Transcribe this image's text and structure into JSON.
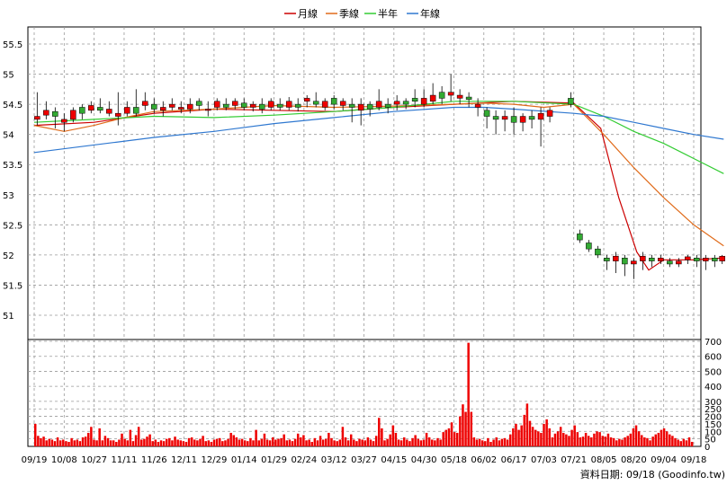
{
  "legend": {
    "items": [
      {
        "label": "月線",
        "color": "#cc0000"
      },
      {
        "label": "季線",
        "color": "#e06b1a"
      },
      {
        "label": "半年",
        "color": "#33cc33"
      },
      {
        "label": "年線",
        "color": "#2f78d0"
      }
    ]
  },
  "footer": {
    "text": "資料日期: 09/18 (Goodinfo.tw)"
  },
  "chart_data": [
    {
      "type": "candlestick",
      "title": "",
      "xlabel": "",
      "ylabel": "",
      "ylim": [
        50.65,
        55.85
      ],
      "y_ticks": [
        51,
        51.5,
        52,
        52.5,
        53,
        53.5,
        54,
        54.5,
        55,
        55.5
      ],
      "x_ticks": [
        "09/19",
        "10/08",
        "10/27",
        "11/11",
        "11/26",
        "12/11",
        "12/29",
        "01/14",
        "01/29",
        "02/24",
        "03/12",
        "03/27",
        "04/15",
        "04/30",
        "05/18",
        "06/02",
        "06/17",
        "07/03",
        "07/21",
        "08/05",
        "08/20",
        "09/04",
        "09/18"
      ],
      "grid": true,
      "candle_colors": {
        "up": "#ee0000",
        "down": "#33aa33"
      },
      "moving_averages": [
        {
          "name": "月線",
          "color": "#cc0000",
          "points": [
            [
              0,
              54.15
            ],
            [
              2,
              54.2
            ],
            [
              4,
              54.35
            ],
            [
              6,
              54.42
            ],
            [
              8,
              54.4
            ],
            [
              10,
              54.38
            ],
            [
              12,
              54.45
            ],
            [
              14,
              54.5
            ],
            [
              16,
              54.55
            ],
            [
              18,
              54.52
            ],
            [
              18.9,
              54.1
            ],
            [
              19.5,
              52.95
            ],
            [
              20.1,
              52.05
            ],
            [
              20.5,
              51.75
            ],
            [
              21,
              51.92
            ],
            [
              22,
              51.92
            ],
            [
              23,
              51.95
            ]
          ]
        },
        {
          "name": "季線",
          "color": "#e06b1a",
          "points": [
            [
              0,
              54.15
            ],
            [
              1,
              54.05
            ],
            [
              2,
              54.15
            ],
            [
              3,
              54.28
            ],
            [
              4,
              54.38
            ],
            [
              6,
              54.42
            ],
            [
              8,
              54.48
            ],
            [
              10,
              54.45
            ],
            [
              12,
              54.47
            ],
            [
              14,
              54.5
            ],
            [
              15,
              54.52
            ],
            [
              16,
              54.5
            ],
            [
              17,
              54.45
            ],
            [
              18,
              54.5
            ],
            [
              19,
              54.0
            ],
            [
              20,
              53.45
            ],
            [
              21,
              52.95
            ],
            [
              22,
              52.5
            ],
            [
              23,
              52.15
            ]
          ]
        },
        {
          "name": "半年",
          "color": "#33cc33",
          "points": [
            [
              0,
              54.2
            ],
            [
              2,
              54.25
            ],
            [
              4,
              54.3
            ],
            [
              6,
              54.28
            ],
            [
              8,
              54.32
            ],
            [
              10,
              54.38
            ],
            [
              12,
              54.45
            ],
            [
              14,
              54.55
            ],
            [
              16,
              54.55
            ],
            [
              18,
              54.5
            ],
            [
              19,
              54.3
            ],
            [
              20,
              54.05
            ],
            [
              21,
              53.85
            ],
            [
              22,
              53.6
            ],
            [
              23,
              53.35
            ]
          ]
        },
        {
          "name": "年線",
          "color": "#2f78d0",
          "points": [
            [
              0,
              53.7
            ],
            [
              4,
              53.95
            ],
            [
              6,
              54.05
            ],
            [
              8,
              54.18
            ],
            [
              10,
              54.28
            ],
            [
              12,
              54.38
            ],
            [
              14,
              54.45
            ],
            [
              15,
              54.45
            ],
            [
              16,
              54.42
            ],
            [
              18,
              54.35
            ],
            [
              19,
              54.3
            ],
            [
              20,
              54.2
            ],
            [
              21,
              54.1
            ],
            [
              22,
              54.0
            ],
            [
              23,
              53.92
            ]
          ]
        }
      ],
      "candles": [
        [
          0.1,
          54.25,
          54.3,
          54.7,
          54.15
        ],
        [
          0.4,
          54.32,
          54.4,
          54.55,
          54.25
        ],
        [
          0.7,
          54.38,
          54.3,
          54.45,
          54.1
        ],
        [
          1.0,
          54.2,
          54.25,
          54.35,
          54.05
        ],
        [
          1.3,
          54.25,
          54.4,
          54.45,
          54.2
        ],
        [
          1.6,
          54.45,
          54.35,
          54.5,
          54.25
        ],
        [
          1.9,
          54.4,
          54.48,
          54.55,
          54.35
        ],
        [
          2.2,
          54.45,
          54.4,
          54.6,
          54.35
        ],
        [
          2.5,
          54.35,
          54.42,
          54.55,
          54.3
        ],
        [
          2.8,
          54.3,
          54.35,
          54.7,
          54.15
        ],
        [
          3.1,
          54.35,
          54.45,
          54.55,
          54.3
        ],
        [
          3.4,
          54.45,
          54.35,
          54.75,
          54.3
        ],
        [
          3.7,
          54.48,
          54.55,
          54.7,
          54.4
        ],
        [
          4.0,
          54.5,
          54.42,
          54.6,
          54.35
        ],
        [
          4.3,
          54.4,
          54.45,
          54.55,
          54.3
        ],
        [
          4.6,
          54.45,
          54.5,
          54.6,
          54.4
        ],
        [
          4.9,
          54.42,
          54.45,
          54.55,
          54.35
        ],
        [
          5.2,
          54.42,
          54.5,
          54.6,
          54.35
        ],
        [
          5.5,
          54.55,
          54.48,
          54.6,
          54.4
        ],
        [
          5.8,
          54.4,
          54.42,
          54.55,
          54.3
        ],
        [
          6.1,
          54.45,
          54.55,
          54.6,
          54.4
        ],
        [
          6.4,
          54.5,
          54.45,
          54.6,
          54.4
        ],
        [
          6.7,
          54.48,
          54.55,
          54.6,
          54.42
        ],
        [
          7.0,
          54.52,
          54.45,
          54.6,
          54.4
        ],
        [
          7.3,
          54.45,
          54.5,
          54.55,
          54.38
        ],
        [
          7.6,
          54.5,
          54.42,
          54.6,
          54.35
        ],
        [
          7.9,
          54.45,
          54.55,
          54.6,
          54.4
        ],
        [
          8.2,
          54.5,
          54.45,
          54.6,
          54.4
        ],
        [
          8.5,
          54.45,
          54.55,
          54.62,
          54.4
        ],
        [
          8.8,
          54.5,
          54.45,
          54.6,
          54.38
        ],
        [
          9.1,
          54.55,
          54.6,
          54.65,
          54.45
        ],
        [
          9.4,
          54.55,
          54.5,
          54.7,
          54.45
        ],
        [
          9.7,
          54.45,
          54.55,
          54.6,
          54.4
        ],
        [
          10.0,
          54.6,
          54.5,
          54.65,
          54.42
        ],
        [
          10.3,
          54.48,
          54.55,
          54.6,
          54.4
        ],
        [
          10.6,
          54.5,
          54.45,
          54.6,
          54.2
        ],
        [
          10.9,
          54.4,
          54.5,
          54.6,
          54.15
        ],
        [
          11.2,
          54.5,
          54.42,
          54.55,
          54.3
        ],
        [
          11.5,
          54.45,
          54.55,
          54.75,
          54.4
        ],
        [
          11.8,
          54.5,
          54.45,
          54.6,
          54.35
        ],
        [
          12.1,
          54.5,
          54.55,
          54.65,
          54.4
        ],
        [
          12.4,
          54.55,
          54.5,
          54.6,
          54.42
        ],
        [
          12.7,
          54.6,
          54.55,
          54.75,
          54.45
        ],
        [
          13.0,
          54.5,
          54.6,
          54.75,
          54.45
        ],
        [
          13.3,
          54.55,
          54.65,
          54.85,
          54.5
        ],
        [
          13.6,
          54.7,
          54.6,
          54.8,
          54.5
        ],
        [
          13.9,
          54.65,
          54.7,
          55.0,
          54.55
        ],
        [
          14.2,
          54.6,
          54.65,
          54.75,
          54.5
        ],
        [
          14.5,
          54.62,
          54.58,
          54.7,
          54.45
        ],
        [
          14.8,
          54.45,
          54.5,
          54.6,
          54.3
        ],
        [
          15.1,
          54.4,
          54.3,
          54.45,
          54.1
        ],
        [
          15.4,
          54.3,
          54.25,
          54.4,
          54.0
        ],
        [
          15.7,
          54.25,
          54.3,
          54.4,
          54.05
        ],
        [
          16.0,
          54.3,
          54.2,
          54.45,
          54.0
        ],
        [
          16.3,
          54.2,
          54.3,
          54.35,
          54.05
        ],
        [
          16.6,
          54.3,
          54.25,
          54.4,
          54.1
        ],
        [
          16.9,
          54.25,
          54.35,
          54.45,
          53.8
        ],
        [
          17.2,
          54.3,
          54.4,
          54.45,
          54.2
        ],
        [
          17.9,
          54.6,
          54.5,
          54.7,
          54.45
        ],
        [
          18.2,
          52.35,
          52.25,
          52.42,
          52.2
        ],
        [
          18.5,
          52.2,
          52.1,
          52.25,
          52.05
        ],
        [
          18.8,
          52.1,
          52.0,
          52.15,
          51.95
        ],
        [
          19.1,
          51.95,
          51.9,
          52.0,
          51.75
        ],
        [
          19.4,
          51.9,
          51.98,
          52.05,
          51.7
        ],
        [
          19.7,
          51.95,
          51.85,
          52.0,
          51.65
        ],
        [
          20.0,
          51.85,
          51.9,
          51.95,
          51.6
        ],
        [
          20.3,
          51.9,
          51.98,
          52.05,
          51.75
        ],
        [
          20.6,
          51.95,
          51.9,
          52.0,
          51.8
        ],
        [
          20.9,
          51.9,
          51.95,
          52.0,
          51.85
        ],
        [
          21.2,
          51.9,
          51.85,
          51.95,
          51.8
        ],
        [
          21.5,
          51.85,
          51.9,
          51.95,
          51.8
        ],
        [
          21.8,
          51.92,
          51.97,
          52.0,
          51.85
        ],
        [
          22.1,
          51.95,
          51.9,
          52.0,
          51.8
        ],
        [
          22.4,
          51.9,
          51.95,
          52.0,
          51.75
        ],
        [
          22.7,
          51.95,
          51.9,
          52.0,
          51.8
        ],
        [
          22.95,
          51.9,
          51.98,
          52.0,
          51.85
        ]
      ]
    },
    {
      "type": "bar",
      "title": "",
      "xlabel": "",
      "ylabel": "",
      "ylim": [
        0,
        700
      ],
      "y_ticks": [
        0,
        50,
        100,
        150,
        200,
        250,
        300,
        400,
        500,
        600,
        700
      ],
      "bar_color": "#ee0000",
      "values": [
        150,
        70,
        55,
        65,
        40,
        50,
        45,
        35,
        60,
        40,
        45,
        35,
        30,
        55,
        40,
        45,
        35,
        60,
        65,
        90,
        130,
        45,
        40,
        120,
        40,
        70,
        55,
        40,
        40,
        30,
        45,
        85,
        50,
        40,
        110,
        35,
        75,
        130,
        45,
        50,
        65,
        80,
        35,
        45,
        30,
        40,
        35,
        50,
        55,
        40,
        65,
        45,
        40,
        35,
        30,
        55,
        60,
        45,
        40,
        50,
        70,
        35,
        40,
        30,
        45,
        50,
        55,
        35,
        40,
        50,
        90,
        75,
        60,
        45,
        50,
        40,
        35,
        55,
        40,
        110,
        40,
        50,
        85,
        45,
        40,
        60,
        45,
        50,
        55,
        80,
        40,
        45,
        35,
        50,
        85,
        60,
        75,
        40,
        45,
        30,
        55,
        40,
        70,
        45,
        50,
        90,
        55,
        40,
        35,
        45,
        130,
        60,
        40,
        80,
        45,
        35,
        50,
        45,
        40,
        60,
        45,
        35,
        70,
        190,
        120,
        40,
        50,
        80,
        140,
        90,
        45,
        40,
        60,
        45,
        35,
        55,
        75,
        50,
        40,
        45,
        90,
        60,
        45,
        40,
        55,
        45,
        95,
        110,
        120,
        160,
        95,
        90,
        200,
        280,
        230,
        690,
        230,
        60,
        45,
        50,
        40,
        35,
        55,
        30,
        45,
        60,
        40,
        50,
        55,
        45,
        80,
        120,
        150,
        110,
        140,
        210,
        285,
        170,
        130,
        110,
        100,
        90,
        150,
        180,
        120,
        60,
        85,
        100,
        130,
        90,
        80,
        70,
        110,
        140,
        95,
        60,
        65,
        90,
        70,
        60,
        85,
        100,
        95,
        70,
        65,
        85,
        60,
        55,
        40,
        50,
        45,
        60,
        70,
        85,
        120,
        140,
        100,
        75,
        60,
        55,
        40,
        65,
        80,
        90,
        110,
        120,
        100,
        80,
        70,
        55,
        45,
        35,
        50,
        40,
        60,
        30
      ]
    }
  ]
}
